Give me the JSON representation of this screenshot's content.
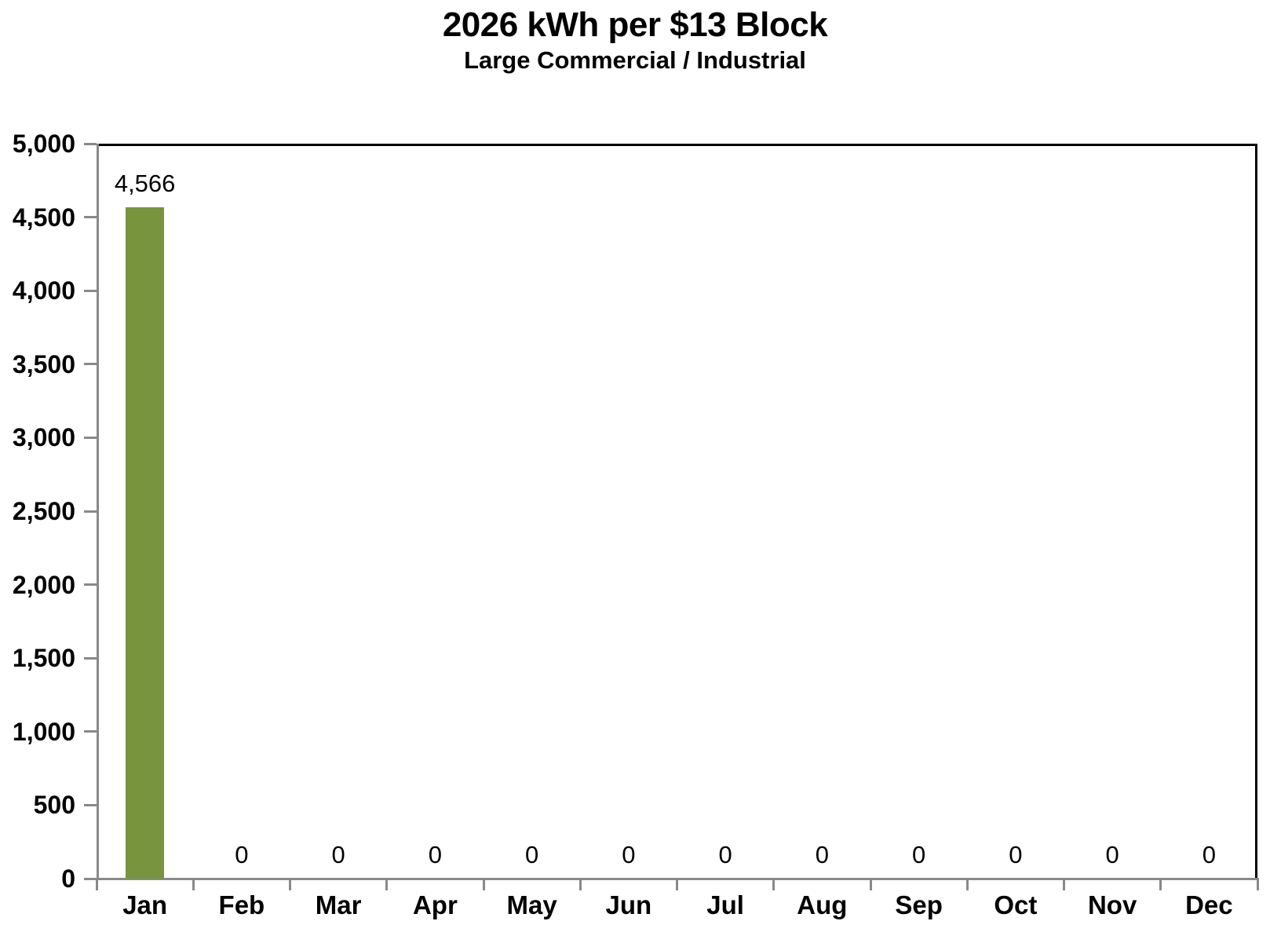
{
  "chart_data": {
    "type": "bar",
    "title": "2026 kWh per $13 Block",
    "subtitle": "Large Commercial / Industrial",
    "categories": [
      "Jan",
      "Feb",
      "Mar",
      "Apr",
      "May",
      "Jun",
      "Jul",
      "Aug",
      "Sep",
      "Oct",
      "Nov",
      "Dec"
    ],
    "values": [
      4566,
      0,
      0,
      0,
      0,
      0,
      0,
      0,
      0,
      0,
      0,
      0
    ],
    "data_labels": [
      "4,566",
      "0",
      "0",
      "0",
      "0",
      "0",
      "0",
      "0",
      "0",
      "0",
      "0",
      "0"
    ],
    "xlabel": "",
    "ylabel": "",
    "ylim": [
      0,
      5000
    ],
    "ytick_step": 500,
    "ytick_labels": [
      "0",
      "500",
      "1,000",
      "1,500",
      "2,000",
      "2,500",
      "3,000",
      "3,500",
      "4,000",
      "4,500",
      "5,000"
    ],
    "grid": false,
    "legend_position": "none",
    "bar_color": "#78943D",
    "axis_color": "#898989",
    "plot_border_color": "#000000",
    "text_color": "#000000"
  }
}
